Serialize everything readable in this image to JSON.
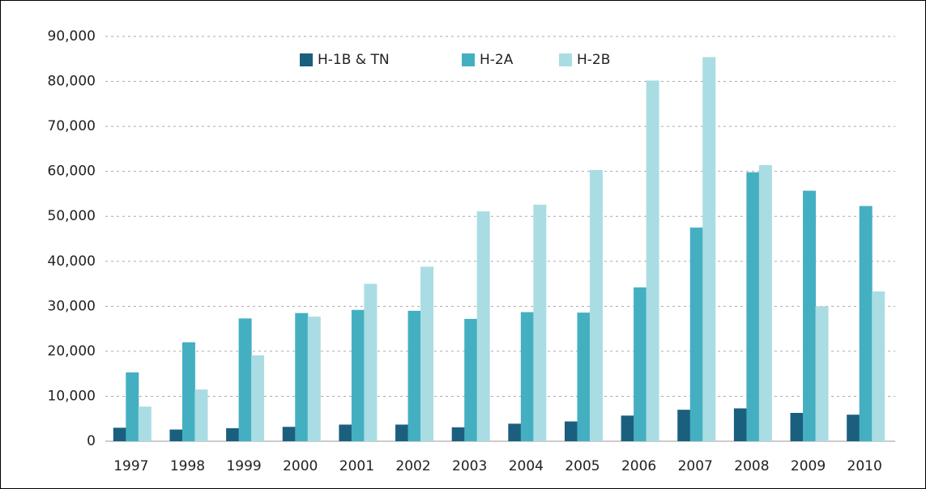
{
  "chart_data": {
    "type": "bar",
    "categories": [
      "1997",
      "1998",
      "1999",
      "2000",
      "2001",
      "2002",
      "2003",
      "2004",
      "2005",
      "2006",
      "2007",
      "2008",
      "2009",
      "2010"
    ],
    "series": [
      {
        "name": "H-1B & TN",
        "color": "#1b5f7f",
        "values": [
          3000,
          2600,
          2900,
          3200,
          3700,
          3700,
          3100,
          3900,
          4400,
          5700,
          7000,
          7300,
          6300,
          5900
        ]
      },
      {
        "name": "H-2A",
        "color": "#45afc2",
        "values": [
          15300,
          22000,
          27300,
          28500,
          29200,
          29000,
          27200,
          28700,
          28600,
          34200,
          47500,
          59800,
          55700,
          52300
        ]
      },
      {
        "name": "H-2B",
        "color": "#a9dde3",
        "values": [
          7700,
          11500,
          19100,
          27700,
          35000,
          38800,
          51100,
          52600,
          60300,
          80200,
          85400,
          61400,
          30000,
          33300
        ]
      }
    ],
    "ylim": [
      0,
      90000
    ],
    "yticks": [
      0,
      {
        "value": 10000,
        "label": "10,000"
      },
      {
        "value": 20000,
        "label": "20,000"
      },
      {
        "value": 30000,
        "label": "30,000"
      },
      {
        "value": 40000,
        "label": "40,000"
      },
      {
        "value": 50000,
        "label": "50,000"
      },
      {
        "value": 60000,
        "label": "60,000"
      },
      {
        "value": 70000,
        "label": "70,000"
      },
      {
        "value": 80000,
        "label": "80,000"
      },
      {
        "value": 90000,
        "label": "90,000"
      }
    ],
    "grid": true,
    "legend_position": "top"
  }
}
